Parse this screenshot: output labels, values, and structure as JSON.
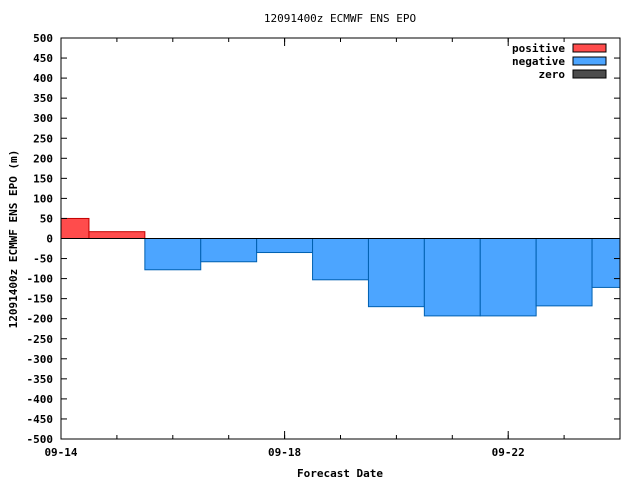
{
  "chart_data": {
    "type": "bar",
    "title": "12091400z ECMWF ENS EPO",
    "xlabel": "Forecast Date",
    "ylabel": "12091400z ECMWF ENS EPO (m)",
    "ylim": [
      -500,
      500
    ],
    "yticks": [
      500,
      450,
      400,
      350,
      300,
      250,
      200,
      150,
      100,
      50,
      0,
      -50,
      -100,
      -150,
      -200,
      -250,
      -300,
      -350,
      -400,
      -450,
      -500
    ],
    "xlim_days": [
      0,
      10
    ],
    "xticks": [
      {
        "day": 0,
        "label": "09-14"
      },
      {
        "day": 4,
        "label": "09-18"
      },
      {
        "day": 8,
        "label": "09-22"
      }
    ],
    "x_minor_tick_step_days": 1,
    "grid": false,
    "legend_position": "top-right",
    "legend": [
      {
        "key": "positive",
        "label": "positive",
        "color": "#ff4c4c"
      },
      {
        "key": "negative",
        "label": "negative",
        "color": "#4ca5ff"
      },
      {
        "key": "zero",
        "label": "zero",
        "color": "#4c4c4c"
      }
    ],
    "bars": [
      {
        "start_day": 0.0,
        "end_day": 0.5,
        "value": 50
      },
      {
        "start_day": 0.5,
        "end_day": 1.5,
        "value": 17
      },
      {
        "start_day": 1.5,
        "end_day": 2.5,
        "value": -78
      },
      {
        "start_day": 2.5,
        "end_day": 3.5,
        "value": -58
      },
      {
        "start_day": 3.5,
        "end_day": 4.5,
        "value": -35
      },
      {
        "start_day": 4.5,
        "end_day": 5.5,
        "value": -103
      },
      {
        "start_day": 5.5,
        "end_day": 6.5,
        "value": -170
      },
      {
        "start_day": 6.5,
        "end_day": 7.5,
        "value": -193
      },
      {
        "start_day": 7.5,
        "end_day": 8.5,
        "value": -193
      },
      {
        "start_day": 8.5,
        "end_day": 9.5,
        "value": -168
      },
      {
        "start_day": 9.5,
        "end_day": 10.0,
        "value": -122
      }
    ]
  }
}
